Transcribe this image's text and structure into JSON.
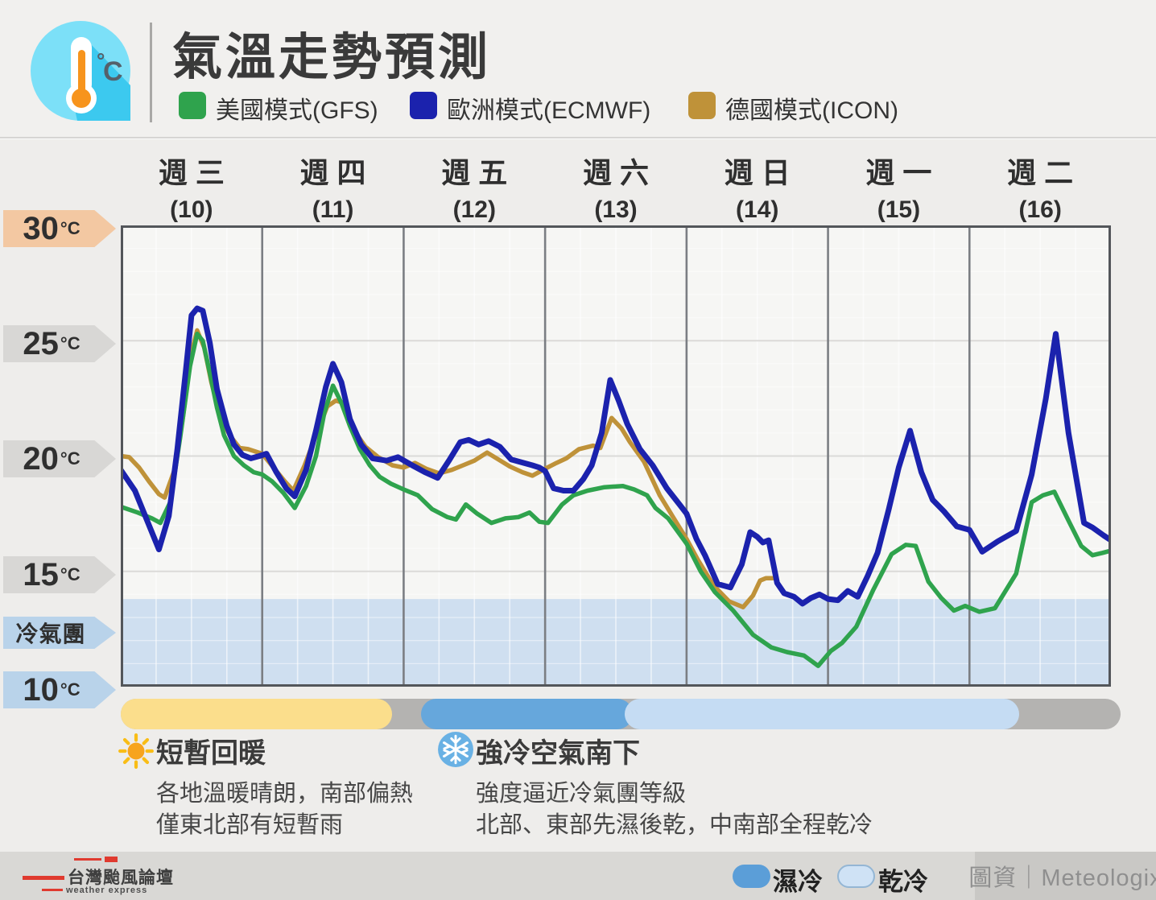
{
  "header": {
    "title": "氣溫走勢預測",
    "icon": "thermometer-celsius-icon",
    "legend": [
      {
        "label": "美國模式(GFS)",
        "color": "#2fa34d"
      },
      {
        "label": "歐洲模式(ECMWF)",
        "color": "#1b22ad"
      },
      {
        "label": "德國模式(ICON)",
        "color": "#bf9239"
      }
    ]
  },
  "chart_data": {
    "type": "line",
    "title": "氣溫走勢預測",
    "x_axis": {
      "unit": "day",
      "range_days": [
        0,
        7
      ],
      "minor_grid_hours": 6,
      "categories": [
        {
          "weekday": "週三",
          "date_label": "(10)"
        },
        {
          "weekday": "週四",
          "date_label": "(11)"
        },
        {
          "weekday": "週五",
          "date_label": "(12)"
        },
        {
          "weekday": "週六",
          "date_label": "(13)"
        },
        {
          "weekday": "週日",
          "date_label": "(14)"
        },
        {
          "weekday": "週一",
          "date_label": "(15)"
        },
        {
          "weekday": "週二",
          "date_label": "(16)"
        }
      ]
    },
    "y_axis": {
      "unit": "°C",
      "min": 10,
      "max": 30,
      "major_step": 5,
      "tick_tags": [
        {
          "label": "30",
          "unit": "°C",
          "color": "#f3c8a2"
        },
        {
          "label": "25",
          "unit": "°C",
          "color": "#d8d7d5"
        },
        {
          "label": "20",
          "unit": "°C",
          "color": "#d8d7d5"
        },
        {
          "label": "15",
          "unit": "°C",
          "color": "#d8d7d5"
        },
        {
          "label": "冷氣團",
          "unit": "",
          "color": "#b9d3ea"
        },
        {
          "label": "10",
          "unit": "°C",
          "color": "#b9d3ea"
        }
      ]
    },
    "cold_air_band": {
      "label": "冷氣團",
      "top_c": 13.8,
      "bottom_c": 10,
      "color": "#cfdff0"
    },
    "series": [
      {
        "name": "德國模式(ICON)",
        "model": "ICON",
        "color": "#bf9239",
        "stroke_width": 5.5,
        "points": [
          [
            0,
            20.0
          ],
          [
            0.06,
            19.95
          ],
          [
            0.13,
            19.5
          ],
          [
            0.2,
            18.9
          ],
          [
            0.27,
            18.35
          ],
          [
            0.31,
            18.2
          ],
          [
            0.38,
            19.4
          ],
          [
            0.44,
            21.7
          ],
          [
            0.5,
            24.5
          ],
          [
            0.54,
            25.45
          ],
          [
            0.59,
            24.7
          ],
          [
            0.64,
            23.2
          ],
          [
            0.7,
            21.8
          ],
          [
            0.77,
            20.9
          ],
          [
            0.84,
            20.35
          ],
          [
            0.9,
            20.3
          ],
          [
            1.0,
            20.1
          ],
          [
            1.08,
            19.5
          ],
          [
            1.16,
            18.9
          ],
          [
            1.22,
            18.5
          ],
          [
            1.3,
            19.6
          ],
          [
            1.38,
            20.9
          ],
          [
            1.46,
            22.15
          ],
          [
            1.52,
            22.4
          ],
          [
            1.58,
            22.3
          ],
          [
            1.65,
            21.1
          ],
          [
            1.73,
            20.4
          ],
          [
            1.82,
            19.95
          ],
          [
            1.92,
            19.6
          ],
          [
            2.0,
            19.5
          ],
          [
            2.08,
            19.7
          ],
          [
            2.16,
            19.45
          ],
          [
            2.25,
            19.25
          ],
          [
            2.34,
            19.4
          ],
          [
            2.42,
            19.6
          ],
          [
            2.5,
            19.8
          ],
          [
            2.59,
            20.15
          ],
          [
            2.67,
            19.85
          ],
          [
            2.75,
            19.55
          ],
          [
            2.84,
            19.3
          ],
          [
            2.91,
            19.15
          ],
          [
            3.0,
            19.45
          ],
          [
            3.08,
            19.7
          ],
          [
            3.15,
            19.9
          ],
          [
            3.24,
            20.3
          ],
          [
            3.34,
            20.45
          ],
          [
            3.39,
            20.35
          ],
          [
            3.47,
            21.65
          ],
          [
            3.54,
            21.2
          ],
          [
            3.6,
            20.6
          ],
          [
            3.7,
            19.75
          ],
          [
            3.81,
            18.3
          ],
          [
            3.9,
            17.4
          ],
          [
            4.0,
            16.4
          ],
          [
            4.08,
            15.5
          ],
          [
            4.19,
            14.4
          ],
          [
            4.3,
            13.7
          ],
          [
            4.4,
            13.45
          ],
          [
            4.47,
            13.95
          ],
          [
            4.52,
            14.6
          ],
          [
            4.56,
            14.7
          ],
          [
            4.61,
            14.7
          ]
        ]
      },
      {
        "name": "美國模式(GFS)",
        "model": "GFS",
        "color": "#2fa34d",
        "stroke_width": 5.5,
        "points": [
          [
            0,
            17.8
          ],
          [
            0.12,
            17.55
          ],
          [
            0.22,
            17.3
          ],
          [
            0.28,
            17.1
          ],
          [
            0.35,
            18.0
          ],
          [
            0.42,
            20.8
          ],
          [
            0.49,
            23.9
          ],
          [
            0.54,
            25.3
          ],
          [
            0.58,
            25.0
          ],
          [
            0.63,
            23.6
          ],
          [
            0.68,
            22.1
          ],
          [
            0.73,
            20.9
          ],
          [
            0.8,
            20.0
          ],
          [
            0.87,
            19.6
          ],
          [
            0.94,
            19.3
          ],
          [
            1.0,
            19.2
          ],
          [
            1.07,
            18.9
          ],
          [
            1.15,
            18.4
          ],
          [
            1.23,
            17.75
          ],
          [
            1.31,
            18.7
          ],
          [
            1.38,
            20.0
          ],
          [
            1.44,
            21.9
          ],
          [
            1.5,
            23.05
          ],
          [
            1.56,
            22.3
          ],
          [
            1.62,
            21.3
          ],
          [
            1.69,
            20.3
          ],
          [
            1.76,
            19.6
          ],
          [
            1.83,
            19.1
          ],
          [
            1.91,
            18.8
          ],
          [
            2.0,
            18.55
          ],
          [
            2.1,
            18.3
          ],
          [
            2.2,
            17.7
          ],
          [
            2.31,
            17.35
          ],
          [
            2.37,
            17.25
          ],
          [
            2.44,
            17.9
          ],
          [
            2.52,
            17.5
          ],
          [
            2.62,
            17.1
          ],
          [
            2.72,
            17.3
          ],
          [
            2.81,
            17.35
          ],
          [
            2.89,
            17.55
          ],
          [
            2.96,
            17.15
          ],
          [
            3.02,
            17.1
          ],
          [
            3.12,
            17.9
          ],
          [
            3.2,
            18.3
          ],
          [
            3.3,
            18.5
          ],
          [
            3.42,
            18.65
          ],
          [
            3.55,
            18.7
          ],
          [
            3.63,
            18.55
          ],
          [
            3.72,
            18.3
          ],
          [
            3.78,
            17.75
          ],
          [
            3.87,
            17.3
          ],
          [
            4.0,
            16.2
          ],
          [
            4.1,
            15.0
          ],
          [
            4.2,
            14.1
          ],
          [
            4.33,
            13.3
          ],
          [
            4.47,
            12.25
          ],
          [
            4.6,
            11.7
          ],
          [
            4.71,
            11.5
          ],
          [
            4.83,
            11.35
          ],
          [
            4.93,
            10.9
          ],
          [
            5.02,
            11.55
          ],
          [
            5.1,
            11.9
          ],
          [
            5.2,
            12.6
          ],
          [
            5.32,
            14.2
          ],
          [
            5.45,
            15.75
          ],
          [
            5.55,
            16.15
          ],
          [
            5.62,
            16.1
          ],
          [
            5.71,
            14.55
          ],
          [
            5.8,
            13.85
          ],
          [
            5.89,
            13.3
          ],
          [
            5.97,
            13.5
          ],
          [
            6.07,
            13.25
          ],
          [
            6.18,
            13.4
          ],
          [
            6.33,
            14.9
          ],
          [
            6.44,
            18.0
          ],
          [
            6.52,
            18.3
          ],
          [
            6.6,
            18.45
          ],
          [
            6.7,
            17.2
          ],
          [
            6.79,
            16.1
          ],
          [
            6.87,
            15.7
          ],
          [
            6.94,
            15.8
          ],
          [
            7.0,
            15.9
          ]
        ]
      },
      {
        "name": "歐洲模式(ECMWF)",
        "model": "ECMWF",
        "color": "#1b22ad",
        "stroke_width": 7,
        "points": [
          [
            0,
            19.4
          ],
          [
            0.1,
            18.5
          ],
          [
            0.2,
            17.0
          ],
          [
            0.27,
            15.95
          ],
          [
            0.34,
            17.4
          ],
          [
            0.4,
            20.3
          ],
          [
            0.46,
            23.7
          ],
          [
            0.5,
            26.1
          ],
          [
            0.54,
            26.4
          ],
          [
            0.58,
            26.3
          ],
          [
            0.63,
            24.9
          ],
          [
            0.68,
            22.9
          ],
          [
            0.75,
            21.3
          ],
          [
            0.8,
            20.5
          ],
          [
            0.86,
            20.05
          ],
          [
            0.92,
            19.9
          ],
          [
            0.98,
            20.0
          ],
          [
            1.03,
            20.1
          ],
          [
            1.1,
            19.3
          ],
          [
            1.17,
            18.6
          ],
          [
            1.23,
            18.25
          ],
          [
            1.31,
            19.4
          ],
          [
            1.38,
            21.1
          ],
          [
            1.45,
            23.0
          ],
          [
            1.5,
            24.0
          ],
          [
            1.56,
            23.2
          ],
          [
            1.62,
            21.6
          ],
          [
            1.7,
            20.5
          ],
          [
            1.78,
            19.9
          ],
          [
            1.88,
            19.8
          ],
          [
            1.96,
            19.95
          ],
          [
            2.06,
            19.6
          ],
          [
            2.15,
            19.3
          ],
          [
            2.24,
            19.05
          ],
          [
            2.32,
            19.8
          ],
          [
            2.4,
            20.6
          ],
          [
            2.46,
            20.7
          ],
          [
            2.53,
            20.5
          ],
          [
            2.6,
            20.65
          ],
          [
            2.68,
            20.4
          ],
          [
            2.76,
            19.85
          ],
          [
            2.85,
            19.7
          ],
          [
            2.91,
            19.6
          ],
          [
            2.96,
            19.5
          ],
          [
            3.0,
            19.35
          ],
          [
            3.06,
            18.6
          ],
          [
            3.13,
            18.5
          ],
          [
            3.2,
            18.5
          ],
          [
            3.27,
            19.0
          ],
          [
            3.33,
            19.6
          ],
          [
            3.4,
            21.0
          ],
          [
            3.46,
            23.3
          ],
          [
            3.52,
            22.4
          ],
          [
            3.58,
            21.4
          ],
          [
            3.67,
            20.3
          ],
          [
            3.76,
            19.6
          ],
          [
            3.86,
            18.6
          ],
          [
            3.95,
            17.9
          ],
          [
            4.0,
            17.5
          ],
          [
            4.07,
            16.4
          ],
          [
            4.13,
            15.7
          ],
          [
            4.22,
            14.45
          ],
          [
            4.31,
            14.3
          ],
          [
            4.39,
            15.3
          ],
          [
            4.45,
            16.7
          ],
          [
            4.5,
            16.5
          ],
          [
            4.54,
            16.25
          ],
          [
            4.58,
            16.35
          ],
          [
            4.64,
            14.5
          ],
          [
            4.69,
            14.05
          ],
          [
            4.76,
            13.9
          ],
          [
            4.82,
            13.6
          ],
          [
            4.88,
            13.85
          ],
          [
            4.94,
            14.0
          ],
          [
            5.0,
            13.8
          ],
          [
            5.07,
            13.75
          ],
          [
            5.14,
            14.15
          ],
          [
            5.21,
            13.9
          ],
          [
            5.28,
            14.8
          ],
          [
            5.35,
            15.8
          ],
          [
            5.43,
            17.7
          ],
          [
            5.5,
            19.5
          ],
          [
            5.58,
            21.1
          ],
          [
            5.66,
            19.3
          ],
          [
            5.74,
            18.1
          ],
          [
            5.82,
            17.6
          ],
          [
            5.91,
            16.95
          ],
          [
            6.0,
            16.8
          ],
          [
            6.09,
            15.85
          ],
          [
            6.2,
            16.3
          ],
          [
            6.33,
            16.75
          ],
          [
            6.44,
            19.2
          ],
          [
            6.54,
            22.5
          ],
          [
            6.61,
            25.3
          ],
          [
            6.7,
            21.0
          ],
          [
            6.81,
            17.1
          ],
          [
            6.87,
            16.9
          ],
          [
            6.95,
            16.55
          ],
          [
            7.0,
            16.35
          ]
        ]
      }
    ]
  },
  "timeline": {
    "track_color": "#b4b3b1",
    "segments": [
      {
        "label": "短暫回暖",
        "color": "#fbde8c",
        "start_day": 0.0,
        "end_day": 1.92
      },
      {
        "label": "濕冷",
        "color": "#66a7dc",
        "start_day": 2.12,
        "end_day": 3.62
      },
      {
        "label": "乾冷",
        "color": "#c5dcf3",
        "start_day": 3.56,
        "end_day": 6.35
      }
    ]
  },
  "annotations": [
    {
      "icon": "sun-icon",
      "title": "短暫回暖",
      "lines": [
        "各地溫暖晴朗，南部偏熱",
        "僅東北部有短暫雨"
      ]
    },
    {
      "icon": "snowflake-icon",
      "title": "強冷空氣南下",
      "lines": [
        "強度逼近冷氣團等級",
        "北部、東部先濕後乾，中南部全程乾冷"
      ]
    }
  ],
  "footer": {
    "logo_title": "台灣颱風論壇",
    "logo_subtitle": "weather express",
    "wet_cold_label": "濕冷",
    "wet_cold_color": "#5b9ed8",
    "dry_cold_label": "乾冷",
    "dry_cold_color": "#cfe2f5",
    "credit": "圖資｜Meteologix"
  }
}
